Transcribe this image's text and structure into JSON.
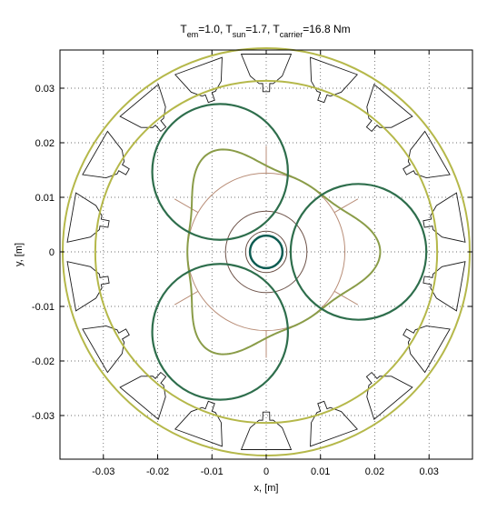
{
  "title": {
    "pre_em": "T",
    "sub_em": "em",
    "val_em": "=1.0, T",
    "sub_sun": "sun",
    "val_sun": "=1.7, T",
    "sub_carrier": "carrier",
    "val_carrier": "=16.8 Nm"
  },
  "xlabel": "x, [m]",
  "ylabel": "y, [m]",
  "chart_data": {
    "type": "diagram",
    "xlim": [
      -0.038,
      0.038
    ],
    "ylim": [
      -0.038,
      0.037
    ],
    "grid": true,
    "xticks": [
      -0.03,
      -0.02,
      -0.01,
      0,
      0.01,
      0.02,
      0.03
    ],
    "xtick_labels": [
      "-0.03",
      "-0.02",
      "-0.01",
      "0",
      "0.01",
      "0.02",
      "0.03"
    ],
    "yticks": [
      0.03,
      0.02,
      0.01,
      0,
      -0.01,
      -0.02,
      -0.03
    ],
    "ytick_labels": [
      "0.03",
      "0.02",
      "0.01",
      "0",
      "-0.01",
      "-0.02",
      "-0.03"
    ],
    "stator": {
      "slots": 18,
      "outer_radius": 0.0375,
      "inner_radius": 0.0295,
      "ring_outer_radius": 0.0375,
      "ring_inner_radius": 0.0315
    },
    "sun": {
      "radius": 0.003
    },
    "planets": {
      "count": 3,
      "radius": 0.0125,
      "orbit_radius": 0.017,
      "angles_deg": [
        0,
        120,
        240
      ]
    },
    "carrier_circles": [
      0.0038,
      0.0075,
      0.0145
    ],
    "colors": {
      "stator": "#1a1a1a",
      "ring": "#b5b84a",
      "planet": "#2e6e4c",
      "sun": "#0e5c52",
      "carrier": "#b98e78",
      "carrier_inner": "#6d5248",
      "path": "#8a9c48"
    }
  }
}
